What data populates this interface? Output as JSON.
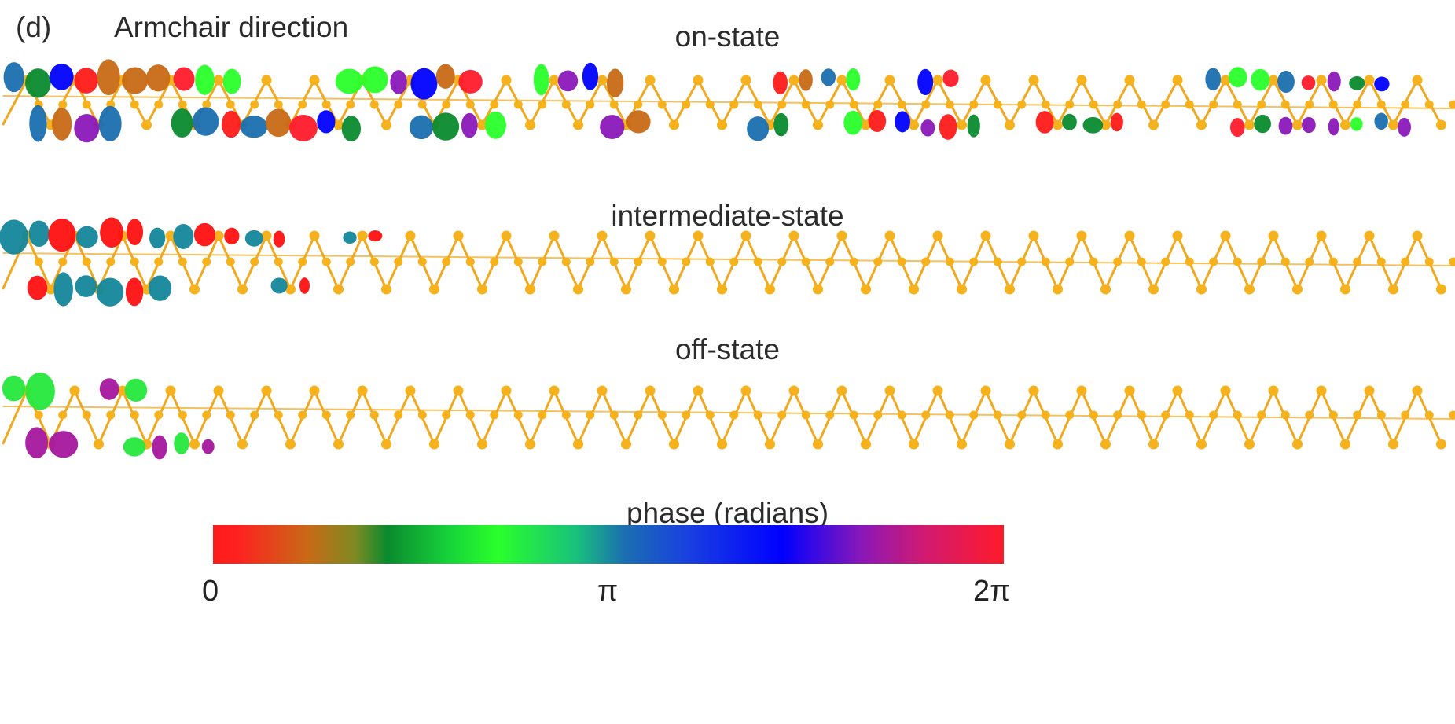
{
  "figure": {
    "panel_label": "(d)",
    "direction": "Armchair direction",
    "states": [
      {
        "title": "on-state",
        "phase_extent": 1.0
      },
      {
        "title": "intermediate-state",
        "phase_extent": 0.26
      },
      {
        "title": "off-state",
        "phase_extent": 0.18
      }
    ]
  },
  "colorbar": {
    "title": "phase (radians)",
    "ticks": [
      "0",
      "π",
      "2π"
    ],
    "colors": [
      "#ff1a1a",
      "#c86a16",
      "#0a8a2e",
      "#2aff2a",
      "#1a6fb0",
      "#0000ff",
      "#8a18b8",
      "#ff1a2a"
    ]
  },
  "colors": {
    "bond": "#f0a81e",
    "atom": "#f5b21c",
    "intermediate_positive": "#ff1010",
    "intermediate_negative": "#13869a",
    "off_positive": "#26e83c",
    "off_negative": "#a4179e"
  }
}
